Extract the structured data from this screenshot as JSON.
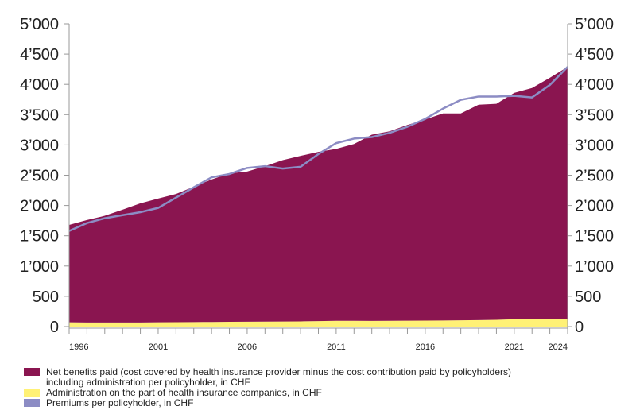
{
  "chart_data": {
    "type": "area",
    "stacked": true,
    "x": [
      1996,
      1997,
      1998,
      1999,
      2000,
      2001,
      2002,
      2003,
      2004,
      2005,
      2006,
      2007,
      2008,
      2009,
      2010,
      2011,
      2012,
      2013,
      2014,
      2015,
      2016,
      2017,
      2018,
      2019,
      2020,
      2021,
      2022,
      2023,
      2024
    ],
    "x_tick_labels": [
      "1996",
      "2001",
      "2006",
      "2011",
      "2016",
      "2021",
      "2024"
    ],
    "y_tick_labels": [
      "0",
      "500",
      "1’000",
      "1’500",
      "2’000",
      "2’500",
      "3’000",
      "3’500",
      "4’000",
      "4’500",
      "5’000"
    ],
    "ylim": [
      0,
      5000
    ],
    "grid": false,
    "y_axis_both_sides": true,
    "legend_position": "bottom",
    "series": [
      {
        "name": "Administration on the part of health insurance companies, in CHF",
        "kind": "area",
        "color": "#fff176",
        "values": [
          70,
          68,
          67,
          67,
          68,
          70,
          72,
          74,
          76,
          78,
          80,
          82,
          84,
          86,
          90,
          95,
          95,
          94,
          95,
          97,
          98,
          100,
          103,
          107,
          112,
          120,
          125,
          125,
          125
        ]
      },
      {
        "name": "Net benefits paid (cost covered by health insurance provider minus the cost contribution paid by policyholders)\nincluding administration per policyholder, in CHF",
        "kind": "area",
        "color": "#8a1550",
        "values": [
          1610,
          1692,
          1763,
          1863,
          1967,
          2045,
          2118,
          2236,
          2354,
          2452,
          2480,
          2568,
          2666,
          2734,
          2795,
          2840,
          2920,
          3076,
          3130,
          3233,
          3322,
          3420,
          3417,
          3558,
          3568,
          3740,
          3815,
          3985,
          4165
        ]
      },
      {
        "name": "Premiums per policyholder, in CHF",
        "kind": "line",
        "color": "#8c8cc4",
        "values": [
          1580,
          1710,
          1790,
          1840,
          1890,
          1960,
          2130,
          2300,
          2465,
          2520,
          2620,
          2650,
          2610,
          2640,
          2850,
          3030,
          3105,
          3130,
          3200,
          3300,
          3430,
          3600,
          3745,
          3800,
          3800,
          3810,
          3785,
          3990,
          4290
        ]
      }
    ]
  },
  "legend": [
    {
      "label": "Net benefits paid (cost covered by health insurance provider minus the cost contribution paid by policyholders)\n    including administration per policyholder, in CHF",
      "color": "#8a1550"
    },
    {
      "label": "Administration on the part of health insurance companies, in CHF",
      "color": "#fff176"
    },
    {
      "label": "Premiums per policyholder, in CHF",
      "color": "#8c8cc4"
    }
  ]
}
